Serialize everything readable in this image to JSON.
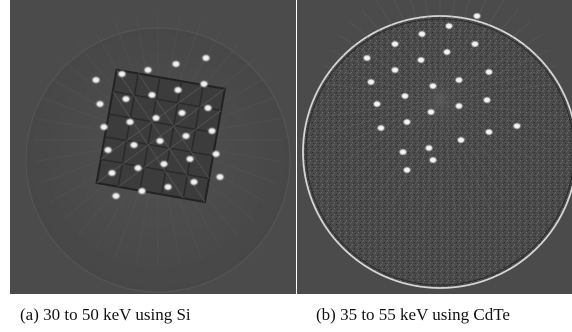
{
  "figure": {
    "captions": {
      "a": "(a) 30 to 50 keV using Si",
      "b": "(b) 35 to 55 keV using CdTe"
    },
    "colors": {
      "background": "#4b4b4b",
      "bead": "#f4f4f4",
      "grid_lines": "#2b2b2b",
      "disk_outline": "#dcdcdc"
    }
  }
}
